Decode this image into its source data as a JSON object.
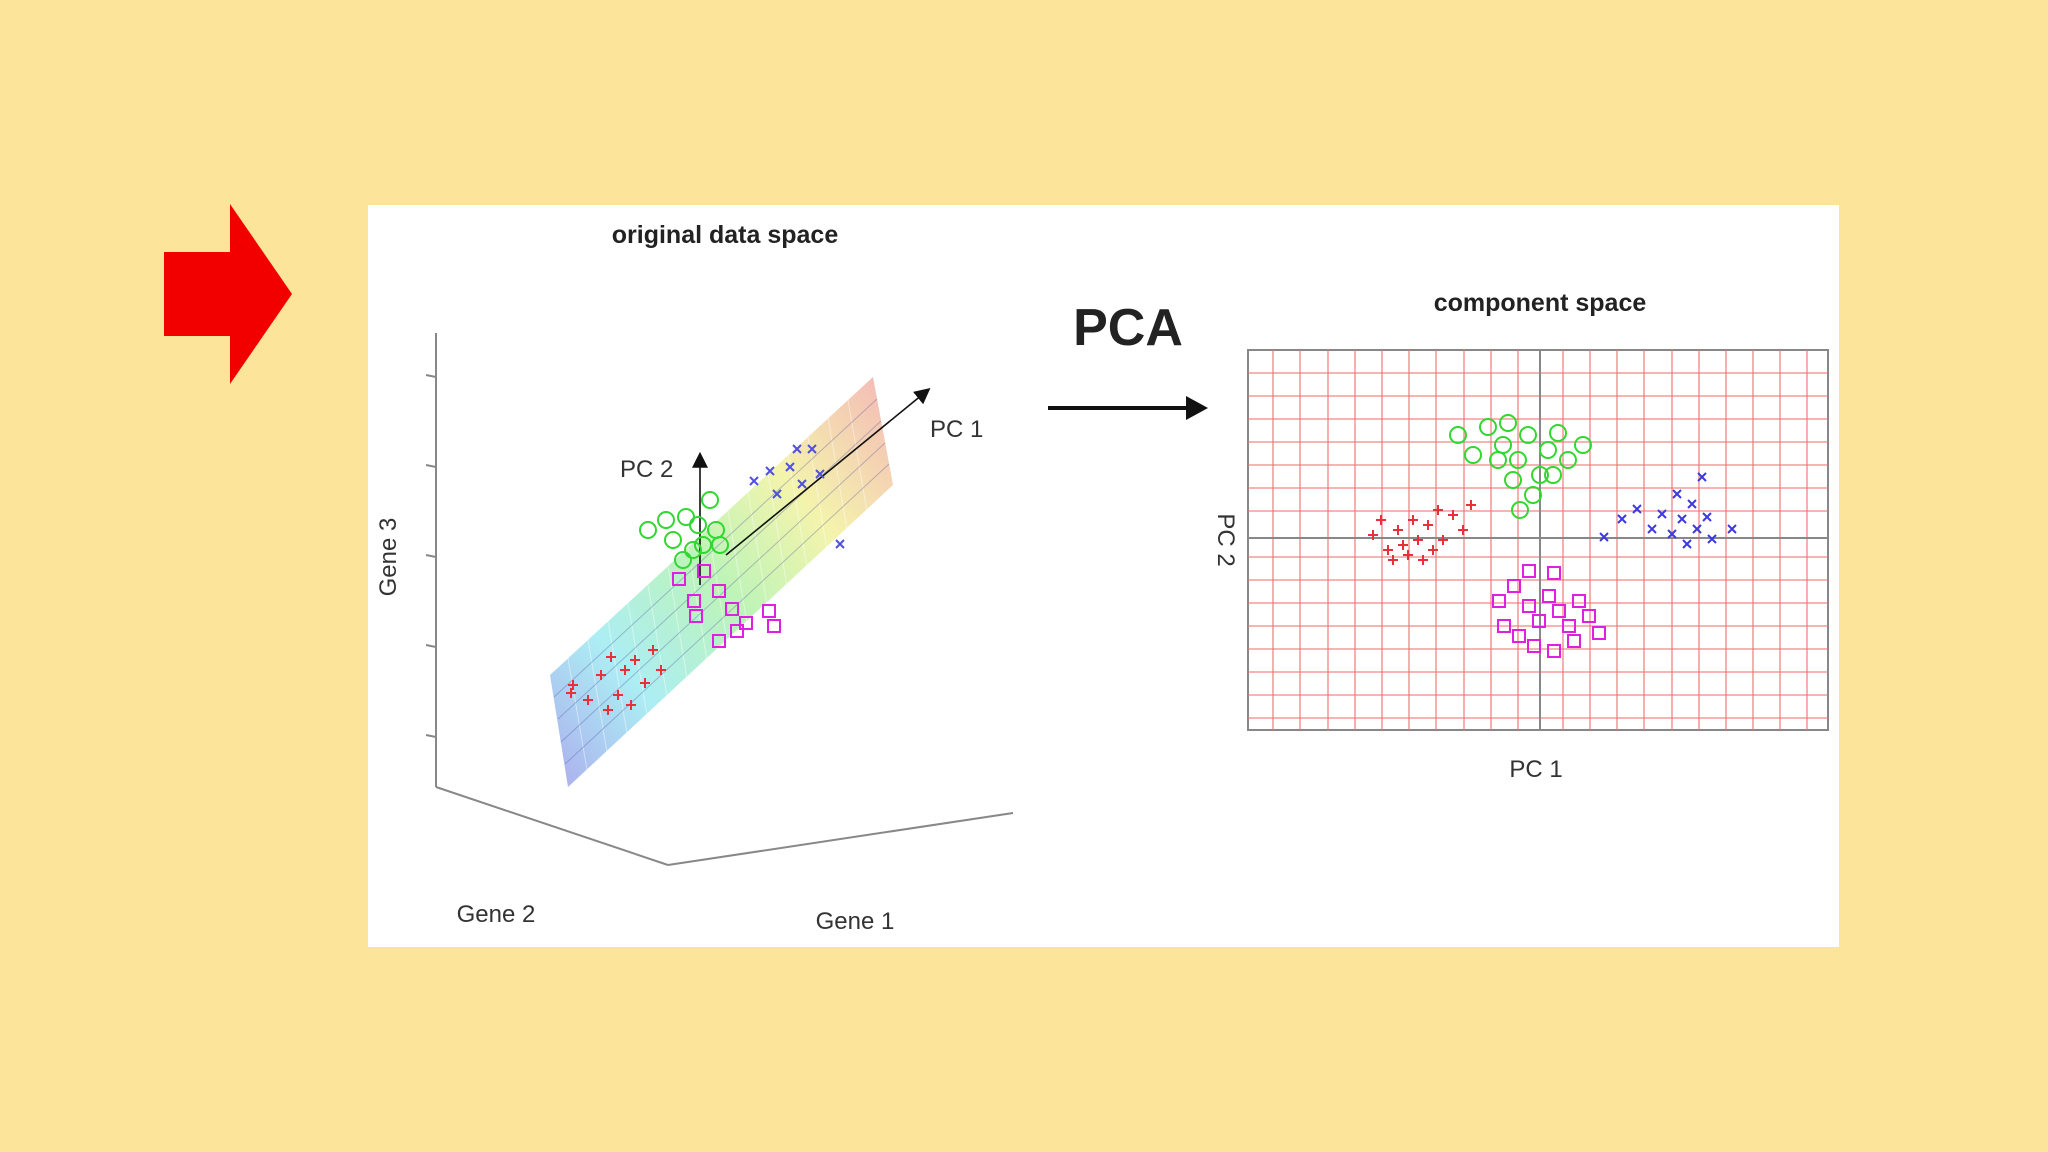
{
  "left_plot": {
    "title": "original data space",
    "pc1_label": "PC 1",
    "pc2_label": "PC 2",
    "axis_gene1": "Gene 1",
    "axis_gene2": "Gene 2",
    "axis_gene3": "Gene 3"
  },
  "transform": {
    "label": "PCA"
  },
  "right_plot": {
    "title": "component space",
    "xlabel": "PC 1",
    "ylabel": "PC 2"
  },
  "colors": {
    "background": "#FCE49A",
    "pointer_arrow": "#F20000",
    "cluster_red": "#E8303A",
    "cluster_green": "#30D830",
    "cluster_blue": "#3A3AE0",
    "cluster_magenta": "#E020E0",
    "grid": "#F07070"
  },
  "icons": {
    "pointer": "right-arrow-icon"
  }
}
